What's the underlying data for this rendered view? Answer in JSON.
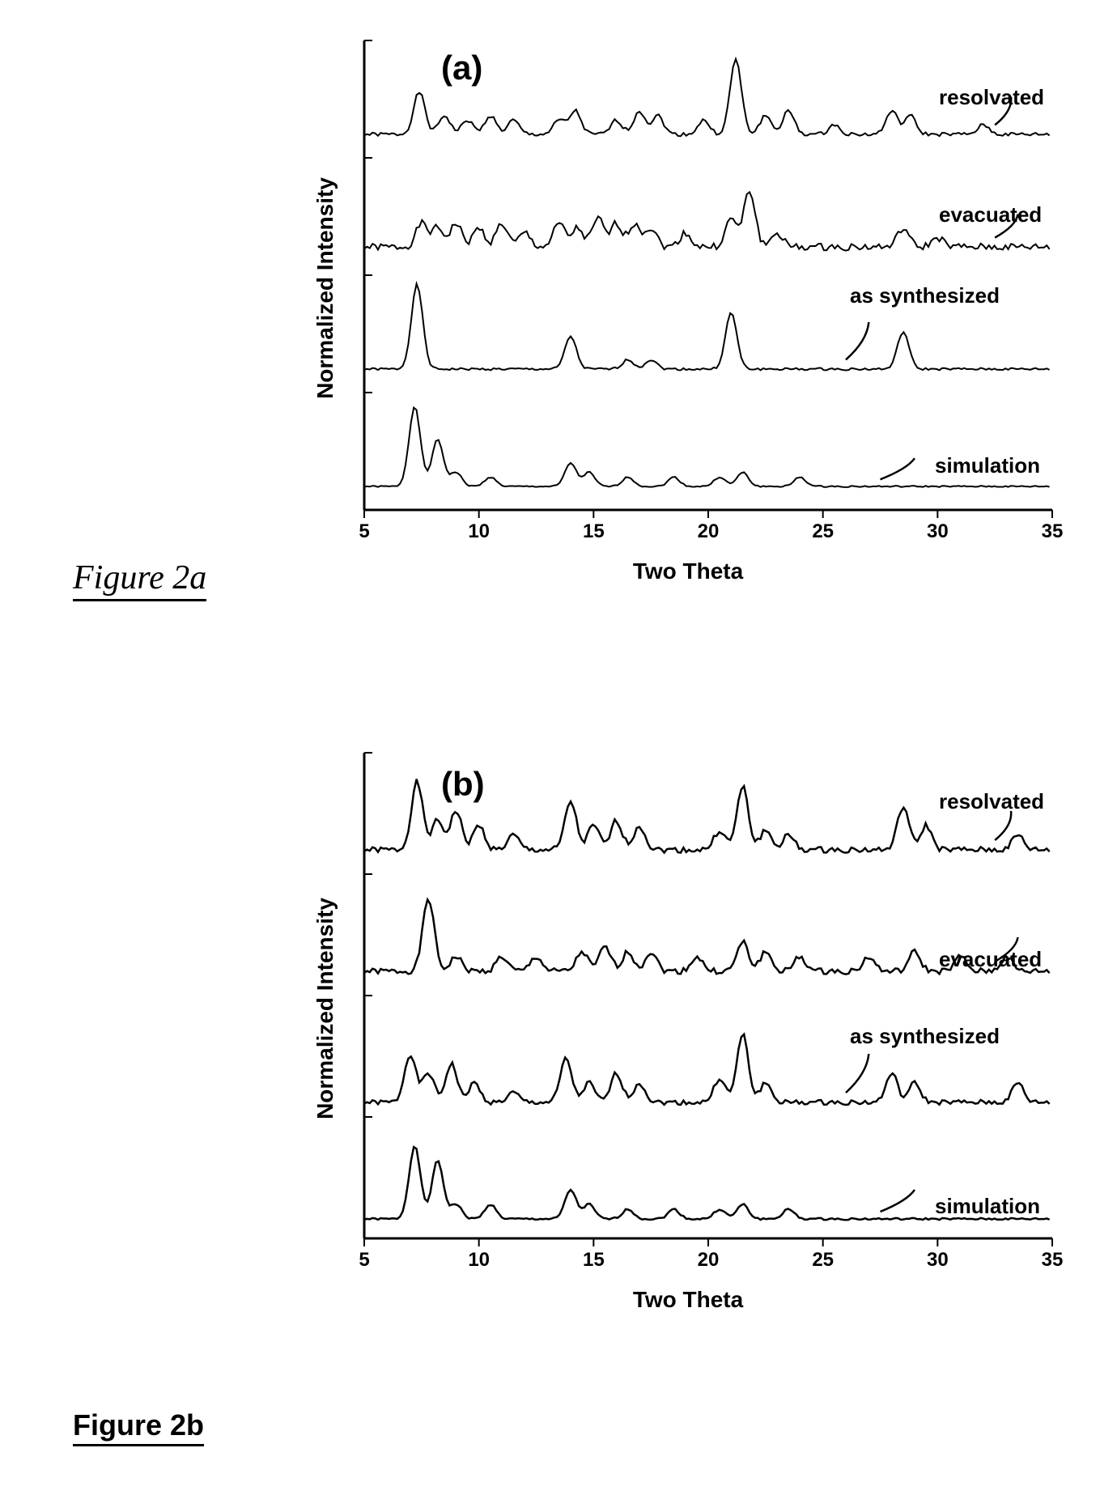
{
  "figure_a": {
    "caption": "Figure 2a",
    "panel_label": "(a)",
    "ylabel": "Normalized Intensity",
    "xlabel": "Two Theta",
    "xlim": [
      5,
      35
    ],
    "xticks": [
      5,
      10,
      15,
      20,
      25,
      30,
      35
    ],
    "background_color": "#ffffff",
    "axis_color": "#000000",
    "line_color": "#000000",
    "line_width": 2,
    "label_fontsize": 28,
    "tick_fontsize": 24,
    "panel_fontsize": 42,
    "series_fontsize": 26,
    "series": [
      {
        "name": "resolvated",
        "baseline": 0.8,
        "peaks": [
          {
            "x": 7.4,
            "h": 0.09
          },
          {
            "x": 8.5,
            "h": 0.04
          },
          {
            "x": 9.5,
            "h": 0.03
          },
          {
            "x": 10.5,
            "h": 0.04
          },
          {
            "x": 11.5,
            "h": 0.03
          },
          {
            "x": 13.5,
            "h": 0.03
          },
          {
            "x": 14.2,
            "h": 0.05
          },
          {
            "x": 16.0,
            "h": 0.03
          },
          {
            "x": 17.0,
            "h": 0.05
          },
          {
            "x": 17.8,
            "h": 0.04
          },
          {
            "x": 19.8,
            "h": 0.03
          },
          {
            "x": 21.2,
            "h": 0.16
          },
          {
            "x": 22.5,
            "h": 0.04
          },
          {
            "x": 23.5,
            "h": 0.05
          },
          {
            "x": 25.5,
            "h": 0.02
          },
          {
            "x": 28.0,
            "h": 0.05
          },
          {
            "x": 28.8,
            "h": 0.04
          },
          {
            "x": 32.0,
            "h": 0.02
          }
        ],
        "noise": 0.008
      },
      {
        "name": "evacuated",
        "baseline": 0.56,
        "peaks": [
          {
            "x": 7.5,
            "h": 0.05
          },
          {
            "x": 8.2,
            "h": 0.04
          },
          {
            "x": 9.0,
            "h": 0.05
          },
          {
            "x": 10.0,
            "h": 0.04
          },
          {
            "x": 11.0,
            "h": 0.05
          },
          {
            "x": 12.0,
            "h": 0.03
          },
          {
            "x": 13.5,
            "h": 0.05
          },
          {
            "x": 14.3,
            "h": 0.04
          },
          {
            "x": 15.2,
            "h": 0.06
          },
          {
            "x": 16.0,
            "h": 0.05
          },
          {
            "x": 16.8,
            "h": 0.05
          },
          {
            "x": 17.5,
            "h": 0.04
          },
          {
            "x": 19.0,
            "h": 0.03
          },
          {
            "x": 21.0,
            "h": 0.06
          },
          {
            "x": 21.8,
            "h": 0.12
          },
          {
            "x": 23.0,
            "h": 0.03
          },
          {
            "x": 28.5,
            "h": 0.04
          },
          {
            "x": 30.0,
            "h": 0.02
          }
        ],
        "noise": 0.015
      },
      {
        "name": "as synthesized",
        "baseline": 0.3,
        "peaks": [
          {
            "x": 7.3,
            "h": 0.18
          },
          {
            "x": 14.0,
            "h": 0.07
          },
          {
            "x": 16.5,
            "h": 0.02
          },
          {
            "x": 17.5,
            "h": 0.02
          },
          {
            "x": 21.0,
            "h": 0.12
          },
          {
            "x": 28.5,
            "h": 0.08
          }
        ],
        "noise": 0.005
      },
      {
        "name": "simulation",
        "baseline": 0.05,
        "peaks": [
          {
            "x": 7.2,
            "h": 0.17
          },
          {
            "x": 8.2,
            "h": 0.1
          },
          {
            "x": 9.0,
            "h": 0.03
          },
          {
            "x": 10.5,
            "h": 0.02
          },
          {
            "x": 14.0,
            "h": 0.05
          },
          {
            "x": 14.8,
            "h": 0.03
          },
          {
            "x": 16.5,
            "h": 0.02
          },
          {
            "x": 18.5,
            "h": 0.02
          },
          {
            "x": 20.5,
            "h": 0.02
          },
          {
            "x": 21.5,
            "h": 0.03
          },
          {
            "x": 24.0,
            "h": 0.02
          }
        ],
        "noise": 0.003
      }
    ]
  },
  "figure_b": {
    "caption": "Figure 2b",
    "panel_label": "(b)",
    "ylabel": "Normalized Intensity",
    "xlabel": "Two Theta",
    "xlim": [
      5,
      35
    ],
    "xticks": [
      5,
      10,
      15,
      20,
      25,
      30,
      35
    ],
    "background_color": "#ffffff",
    "axis_color": "#000000",
    "line_color": "#000000",
    "line_width": 2.5,
    "label_fontsize": 28,
    "tick_fontsize": 24,
    "panel_fontsize": 42,
    "series_fontsize": 26,
    "series": [
      {
        "name": "resolvated",
        "baseline": 0.8,
        "peaks": [
          {
            "x": 7.3,
            "h": 0.14
          },
          {
            "x": 8.2,
            "h": 0.06
          },
          {
            "x": 9.0,
            "h": 0.08
          },
          {
            "x": 10.0,
            "h": 0.05
          },
          {
            "x": 11.5,
            "h": 0.03
          },
          {
            "x": 14.0,
            "h": 0.1
          },
          {
            "x": 15.0,
            "h": 0.05
          },
          {
            "x": 16.0,
            "h": 0.06
          },
          {
            "x": 17.0,
            "h": 0.05
          },
          {
            "x": 20.5,
            "h": 0.04
          },
          {
            "x": 21.5,
            "h": 0.13
          },
          {
            "x": 22.5,
            "h": 0.04
          },
          {
            "x": 23.5,
            "h": 0.03
          },
          {
            "x": 28.5,
            "h": 0.09
          },
          {
            "x": 29.5,
            "h": 0.05
          },
          {
            "x": 33.5,
            "h": 0.03
          }
        ],
        "noise": 0.012
      },
      {
        "name": "evacuated",
        "baseline": 0.55,
        "peaks": [
          {
            "x": 7.8,
            "h": 0.15
          },
          {
            "x": 9.0,
            "h": 0.03
          },
          {
            "x": 11.0,
            "h": 0.03
          },
          {
            "x": 12.5,
            "h": 0.03
          },
          {
            "x": 14.5,
            "h": 0.04
          },
          {
            "x": 15.5,
            "h": 0.05
          },
          {
            "x": 16.5,
            "h": 0.04
          },
          {
            "x": 17.5,
            "h": 0.04
          },
          {
            "x": 19.5,
            "h": 0.03
          },
          {
            "x": 21.5,
            "h": 0.06
          },
          {
            "x": 22.5,
            "h": 0.04
          },
          {
            "x": 24.0,
            "h": 0.03
          },
          {
            "x": 27.0,
            "h": 0.03
          },
          {
            "x": 29.0,
            "h": 0.04
          },
          {
            "x": 31.0,
            "h": 0.03
          },
          {
            "x": 33.0,
            "h": 0.03
          }
        ],
        "noise": 0.012
      },
      {
        "name": "as synthesized",
        "baseline": 0.28,
        "peaks": [
          {
            "x": 7.0,
            "h": 0.1
          },
          {
            "x": 7.8,
            "h": 0.06
          },
          {
            "x": 8.8,
            "h": 0.08
          },
          {
            "x": 9.8,
            "h": 0.04
          },
          {
            "x": 11.5,
            "h": 0.02
          },
          {
            "x": 13.8,
            "h": 0.09
          },
          {
            "x": 14.8,
            "h": 0.04
          },
          {
            "x": 16.0,
            "h": 0.06
          },
          {
            "x": 17.0,
            "h": 0.04
          },
          {
            "x": 20.5,
            "h": 0.05
          },
          {
            "x": 21.5,
            "h": 0.14
          },
          {
            "x": 22.5,
            "h": 0.04
          },
          {
            "x": 28.0,
            "h": 0.06
          },
          {
            "x": 29.0,
            "h": 0.04
          },
          {
            "x": 33.5,
            "h": 0.04
          }
        ],
        "noise": 0.01
      },
      {
        "name": "simulation",
        "baseline": 0.04,
        "peaks": [
          {
            "x": 7.2,
            "h": 0.15
          },
          {
            "x": 8.2,
            "h": 0.12
          },
          {
            "x": 9.0,
            "h": 0.03
          },
          {
            "x": 10.5,
            "h": 0.03
          },
          {
            "x": 14.0,
            "h": 0.06
          },
          {
            "x": 14.8,
            "h": 0.03
          },
          {
            "x": 16.5,
            "h": 0.02
          },
          {
            "x": 18.5,
            "h": 0.02
          },
          {
            "x": 20.5,
            "h": 0.02
          },
          {
            "x": 21.5,
            "h": 0.03
          },
          {
            "x": 23.5,
            "h": 0.02
          }
        ],
        "noise": 0.004
      }
    ]
  }
}
